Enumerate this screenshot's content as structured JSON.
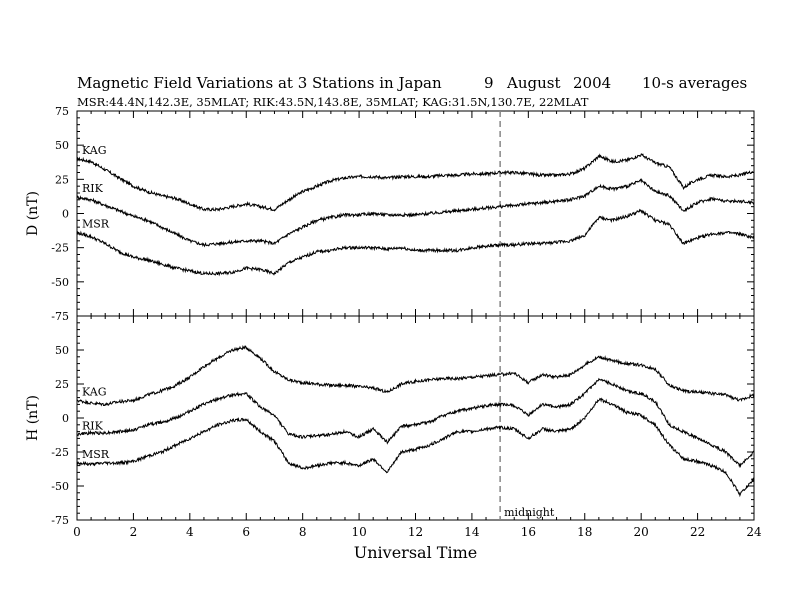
{
  "header": {
    "title": "Magnetic Field Variations at 3 Stations in Japan",
    "day": "9",
    "month": "August",
    "year": "2004",
    "averaging": "10-s averages",
    "subtitle": "MSR:44.4N,142.3E, 35MLAT;   RIK:43.5N,143.8E, 35MLAT;   KAG:31.5N,130.7E, 22MLAT"
  },
  "chart_data": [
    {
      "type": "line",
      "panel": "top",
      "ylabel": "D (nT)",
      "xlabel": "",
      "xlim": [
        0,
        24
      ],
      "ylim": [
        -75,
        75
      ],
      "xticks": [
        0,
        2,
        4,
        6,
        8,
        10,
        12,
        14,
        16,
        18,
        20,
        22,
        24
      ],
      "xtick_labels": [
        "",
        "",
        "",
        "",
        "",
        "",
        "",
        "",
        "",
        "",
        "",
        "",
        ""
      ],
      "yticks": [
        -75,
        -50,
        -25,
        0,
        25,
        50,
        75
      ],
      "ytick_labels": [
        "-75",
        "-50",
        "-25",
        "0",
        "25",
        "50",
        "75"
      ],
      "grid": false,
      "midnight_ut": 15,
      "series": [
        {
          "name": "KAG",
          "x": [
            0,
            0.5,
            1,
            1.5,
            2,
            2.5,
            3,
            3.5,
            4,
            4.5,
            5,
            5.5,
            6,
            6.5,
            7,
            7.5,
            8,
            8.5,
            9,
            9.5,
            10,
            10.5,
            11,
            11.5,
            12,
            12.5,
            13,
            13.5,
            14,
            14.5,
            15,
            15.5,
            16,
            16.5,
            17,
            17.5,
            18,
            18.5,
            19,
            19.5,
            20,
            20.5,
            21,
            21.5,
            22,
            22.5,
            23,
            23.5,
            24
          ],
          "values": [
            40,
            38,
            32,
            26,
            20,
            16,
            13,
            11,
            7,
            3,
            3,
            5,
            7,
            5,
            3,
            10,
            16,
            20,
            24,
            26,
            27,
            27,
            26,
            27,
            27,
            27,
            28,
            28,
            29,
            29,
            30,
            30,
            29,
            28,
            28,
            29,
            33,
            42,
            38,
            39,
            43,
            37,
            34,
            19,
            25,
            28,
            27,
            28,
            31
          ]
        },
        {
          "name": "RIK",
          "x": [
            0,
            0.5,
            1,
            1.5,
            2,
            2.5,
            3,
            3.5,
            4,
            4.5,
            5,
            5.5,
            6,
            6.5,
            7,
            7.5,
            8,
            8.5,
            9,
            9.5,
            10,
            10.5,
            11,
            11.5,
            12,
            12.5,
            13,
            13.5,
            14,
            14.5,
            15,
            15.5,
            16,
            16.5,
            17,
            17.5,
            18,
            18.5,
            19,
            19.5,
            20,
            20.5,
            21,
            21.5,
            22,
            22.5,
            23,
            23.5,
            24
          ],
          "values": [
            12,
            10,
            6,
            2,
            -2,
            -5,
            -10,
            -15,
            -20,
            -23,
            -22,
            -21,
            -20,
            -20,
            -22,
            -15,
            -10,
            -5,
            -3,
            -1,
            -1,
            0,
            -1,
            -1,
            -1,
            0,
            1,
            2,
            3,
            4,
            5,
            6,
            7,
            8,
            9,
            10,
            13,
            20,
            18,
            20,
            24,
            16,
            13,
            2,
            8,
            11,
            9,
            9,
            8
          ]
        },
        {
          "name": "MSR",
          "x": [
            0,
            0.5,
            1,
            1.5,
            2,
            2.5,
            3,
            3.5,
            4,
            4.5,
            5,
            5.5,
            6,
            6.5,
            7,
            7.5,
            8,
            8.5,
            9,
            9.5,
            10,
            10.5,
            11,
            11.5,
            12,
            12.5,
            13,
            13.5,
            14,
            14.5,
            15,
            15.5,
            16,
            16.5,
            17,
            17.5,
            18,
            18.5,
            19,
            19.5,
            20,
            20.5,
            21,
            21.5,
            22,
            22.5,
            23,
            23.5,
            24
          ],
          "values": [
            -14,
            -17,
            -22,
            -28,
            -32,
            -34,
            -37,
            -40,
            -42,
            -44,
            -44,
            -43,
            -40,
            -41,
            -44,
            -36,
            -32,
            -28,
            -27,
            -25,
            -25,
            -25,
            -26,
            -25,
            -27,
            -27,
            -27,
            -27,
            -25,
            -24,
            -23,
            -23,
            -22,
            -22,
            -21,
            -20,
            -16,
            -3,
            -5,
            -2,
            2,
            -5,
            -8,
            -22,
            -18,
            -15,
            -14,
            -15,
            -18
          ]
        }
      ]
    },
    {
      "type": "line",
      "panel": "bottom",
      "ylabel": "H (nT)",
      "xlabel": "Universal Time",
      "xlim": [
        0,
        24
      ],
      "ylim": [
        -75,
        75
      ],
      "xticks": [
        0,
        2,
        4,
        6,
        8,
        10,
        12,
        14,
        16,
        18,
        20,
        22,
        24
      ],
      "xtick_labels": [
        "0",
        "2",
        "4",
        "6",
        "8",
        "10",
        "12",
        "14",
        "16",
        "18",
        "20",
        "22",
        "24"
      ],
      "yticks": [
        -75,
        -50,
        -25,
        0,
        25,
        50,
        75
      ],
      "ytick_labels": [
        "-75",
        "-50",
        "-25",
        "0",
        "25",
        "50",
        ""
      ],
      "grid": false,
      "midnight_ut": 15,
      "midnight_label": "midnight",
      "series": [
        {
          "name": "KAG",
          "x": [
            0,
            0.5,
            1,
            1.5,
            2,
            2.5,
            3,
            3.5,
            4,
            4.5,
            5,
            5.5,
            6,
            6.5,
            7,
            7.5,
            8,
            8.5,
            9,
            9.5,
            10,
            10.5,
            11,
            11.5,
            12,
            12.5,
            13,
            13.5,
            14,
            14.5,
            15,
            15.5,
            16,
            16.5,
            17,
            17.5,
            18,
            18.5,
            19,
            19.5,
            20,
            20.5,
            21,
            21.5,
            22,
            22.5,
            23,
            23.5,
            24
          ],
          "values": [
            13,
            11,
            10,
            12,
            13,
            17,
            20,
            24,
            30,
            38,
            44,
            50,
            52,
            44,
            34,
            28,
            26,
            25,
            24,
            24,
            23,
            22,
            19,
            25,
            27,
            28,
            29,
            29,
            30,
            31,
            32,
            33,
            26,
            32,
            30,
            32,
            39,
            45,
            42,
            40,
            39,
            36,
            24,
            20,
            19,
            18,
            17,
            13,
            17
          ]
        },
        {
          "name": "RIK",
          "x": [
            0,
            0.5,
            1,
            1.5,
            2,
            2.5,
            3,
            3.5,
            4,
            4.5,
            5,
            5.5,
            6,
            6.5,
            7,
            7.5,
            8,
            8.5,
            9,
            9.5,
            10,
            10.5,
            11,
            11.5,
            12,
            12.5,
            13,
            13.5,
            14,
            14.5,
            15,
            15.5,
            16,
            16.5,
            17,
            17.5,
            18,
            18.5,
            19,
            19.5,
            20,
            20.5,
            21,
            21.5,
            22,
            22.5,
            23,
            23.5,
            24
          ],
          "values": [
            -12,
            -11,
            -11,
            -10,
            -9,
            -5,
            -3,
            0,
            5,
            10,
            14,
            17,
            18,
            8,
            2,
            -12,
            -14,
            -13,
            -12,
            -10,
            -14,
            -8,
            -18,
            -6,
            -5,
            -3,
            2,
            5,
            7,
            9,
            10,
            9,
            2,
            10,
            8,
            10,
            18,
            28,
            25,
            20,
            18,
            12,
            -5,
            -10,
            -15,
            -20,
            -25,
            -35,
            -25
          ]
        },
        {
          "name": "MSR",
          "x": [
            0,
            0.5,
            1,
            1.5,
            2,
            2.5,
            3,
            3.5,
            4,
            4.5,
            5,
            5.5,
            6,
            6.5,
            7,
            7.5,
            8,
            8.5,
            9,
            9.5,
            10,
            10.5,
            11,
            11.5,
            12,
            12.5,
            13,
            13.5,
            14,
            14.5,
            15,
            15.5,
            16,
            16.5,
            17,
            17.5,
            18,
            18.5,
            19,
            19.5,
            20,
            20.5,
            21,
            21.5,
            22,
            22.5,
            23,
            23.5,
            24
          ],
          "values": [
            -33,
            -34,
            -33,
            -33,
            -32,
            -28,
            -25,
            -20,
            -15,
            -10,
            -5,
            -2,
            -1,
            -10,
            -17,
            -33,
            -37,
            -35,
            -33,
            -33,
            -35,
            -30,
            -40,
            -25,
            -23,
            -20,
            -15,
            -10,
            -10,
            -8,
            -7,
            -8,
            -15,
            -8,
            -10,
            -8,
            0,
            14,
            10,
            4,
            2,
            -5,
            -20,
            -30,
            -32,
            -35,
            -40,
            -56,
            -45
          ]
        }
      ],
      "series_labels_at": "left"
    }
  ]
}
